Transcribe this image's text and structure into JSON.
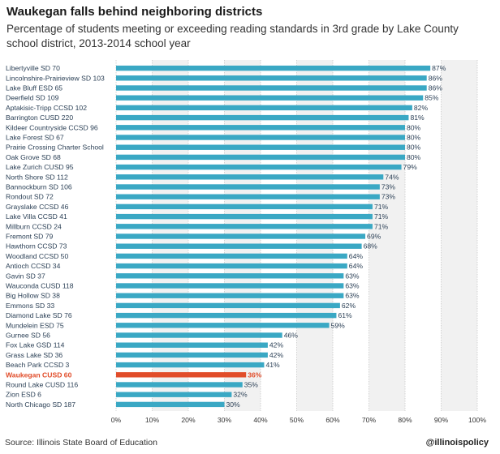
{
  "header": {
    "title": "Waukegan falls behind neighboring districts",
    "subtitle": "Percentage of students meeting or exceeding reading standards in 3rd grade by Lake County school district, 2013-2014 school year"
  },
  "footer": {
    "source": "Source: Illinois State Board of Education",
    "handle": "@illinoispolicy"
  },
  "colors": {
    "bar": "#3aa8c4",
    "highlight": "#e14d2a",
    "band": "#f1f1f1"
  },
  "chart_data": {
    "type": "bar",
    "orientation": "horizontal",
    "highlight": "Waukegan CUSD 60",
    "xlim": [
      0,
      100
    ],
    "xticks": [
      0,
      10,
      20,
      30,
      40,
      50,
      60,
      70,
      80,
      90,
      100
    ],
    "tick_labels": [
      "0%",
      "10%",
      "20%",
      "30%",
      "40%",
      "50%",
      "60%",
      "70%",
      "80%",
      "90%",
      "100%"
    ],
    "grid": true,
    "categories": [
      "Libertyville SD 70",
      "Lincolnshire-Prairieview SD 103",
      "Lake Bluff ESD 65",
      "Deerfield SD 109",
      "Aptakisic-Tripp CCSD 102",
      "Barrington CUSD 220",
      "Kildeer Countryside CCSD 96",
      "Lake Forest SD 67",
      "Prairie Crossing Charter School",
      "Oak Grove SD 68",
      "Lake Zurich CUSD 95",
      "North Shore SD 112",
      "Bannockburn SD 106",
      "Rondout SD 72",
      "Grayslake CCSD 46",
      "Lake Villa CCSD 41",
      "Millburn CCSD 24",
      "Fremont SD 79",
      "Hawthorn CCSD 73",
      "Woodland CCSD 50",
      "Antioch CCSD 34",
      "Gavin SD 37",
      "Wauconda CUSD 118",
      "Big Hollow SD 38",
      "Emmons SD 33",
      "Diamond Lake SD 76",
      "Mundelein ESD 75",
      "Gurnee SD 56",
      "Fox Lake GSD 114",
      "Grass Lake SD 36",
      "Beach Park CCSD 3",
      "Waukegan CUSD 60",
      "Round Lake CUSD 116",
      "Zion ESD 6",
      "North Chicago SD 187"
    ],
    "values": [
      87,
      86,
      86,
      85,
      82,
      81,
      80,
      80,
      80,
      80,
      79,
      74,
      73,
      73,
      71,
      71,
      71,
      69,
      68,
      64,
      64,
      63,
      63,
      63,
      62,
      61,
      59,
      46,
      42,
      42,
      41,
      36,
      35,
      32,
      30
    ],
    "value_labels": [
      "87%",
      "86%",
      "86%",
      "85%",
      "82%",
      "81%",
      "80%",
      "80%",
      "80%",
      "80%",
      "79%",
      "74%",
      "73%",
      "73%",
      "71%",
      "71%",
      "71%",
      "69%",
      "68%",
      "64%",
      "64%",
      "63%",
      "63%",
      "63%",
      "62%",
      "61%",
      "59%",
      "46%",
      "42%",
      "42%",
      "41%",
      "36%",
      "35%",
      "32%",
      "30%"
    ]
  }
}
